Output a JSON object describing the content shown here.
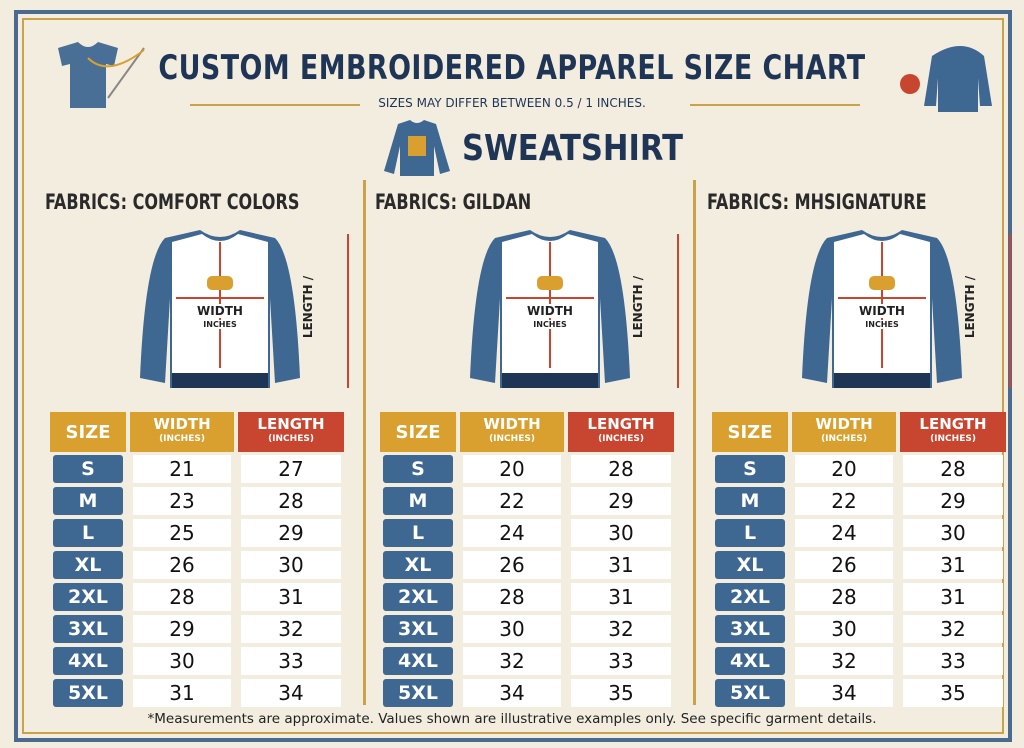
{
  "header": {
    "title": "CUSTOM EMBROIDERED APPAREL SIZE CHART",
    "subtitle": "SIZES MAY DIFFER BETWEEN 0.5 / 1 INCHES.",
    "section": "SWEATSHIRT"
  },
  "panels": [
    {
      "fabric": "FABRICS: COMFORT COLORS",
      "diagram": {
        "width": "WIDTH",
        "unit": "INCHES",
        "length": "LENGTH /"
      },
      "table": {
        "head": {
          "size": "SIZE",
          "width": "WIDTH",
          "width_unit": "(INCHES)",
          "length": "LENGTH",
          "length_unit": "(INCHES)"
        },
        "rows": [
          [
            "S",
            21,
            27
          ],
          [
            "M",
            23,
            28
          ],
          [
            "L",
            25,
            29
          ],
          [
            "XL",
            26,
            30
          ],
          [
            "2XL",
            28,
            31
          ],
          [
            "3XL",
            29,
            32
          ],
          [
            "4XL",
            30,
            33
          ],
          [
            "5XL",
            31,
            34
          ]
        ]
      }
    },
    {
      "fabric": "FABRICS: GILDAN",
      "diagram": {
        "width": "WIDTH",
        "unit": "INCHES",
        "length": "LENGTH /"
      },
      "table": {
        "head": {
          "size": "SIZE",
          "width": "WIDTH",
          "width_unit": "(INCHES)",
          "length": "LENGTH",
          "length_unit": "(INCHES)"
        },
        "rows": [
          [
            "S",
            20,
            28
          ],
          [
            "M",
            22,
            29
          ],
          [
            "L",
            24,
            30
          ],
          [
            "XL",
            26,
            31
          ],
          [
            "2XL",
            28,
            31
          ],
          [
            "3XL",
            30,
            32
          ],
          [
            "4XL",
            32,
            33
          ],
          [
            "5XL",
            34,
            35
          ]
        ]
      }
    },
    {
      "fabric": "FABRICS: MHSIGNATURE",
      "diagram": {
        "width": "WIDTH",
        "unit": "INCHES",
        "length": "LENGTH /"
      },
      "table": {
        "head": {
          "size": "SIZE",
          "width": "WIDTH",
          "width_unit": "(INCHES)",
          "length": "LENGTH",
          "length_unit": "(INCHES)"
        },
        "rows": [
          [
            "S",
            20,
            28
          ],
          [
            "M",
            22,
            29
          ],
          [
            "L",
            24,
            30
          ],
          [
            "XL",
            26,
            31
          ],
          [
            "2XL",
            28,
            31
          ],
          [
            "3XL",
            30,
            32
          ],
          [
            "4XL",
            32,
            33
          ],
          [
            "5XL",
            34,
            35
          ]
        ]
      }
    }
  ],
  "footer": "*Measurements are approximate. Values shown are illustrative examples only. See specific garment details."
}
